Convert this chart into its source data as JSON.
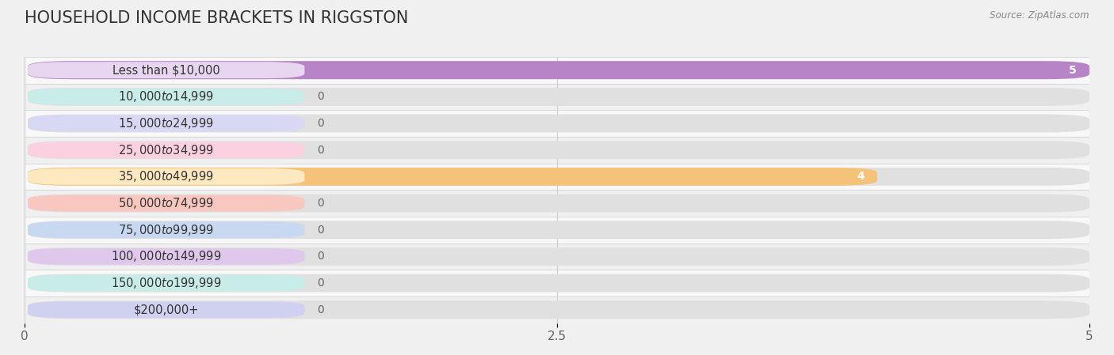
{
  "title": "HOUSEHOLD INCOME BRACKETS IN RIGGSTON",
  "source": "Source: ZipAtlas.com",
  "categories": [
    "Less than $10,000",
    "$10,000 to $14,999",
    "$15,000 to $24,999",
    "$25,000 to $34,999",
    "$35,000 to $49,999",
    "$50,000 to $74,999",
    "$75,000 to $99,999",
    "$100,000 to $149,999",
    "$150,000 to $199,999",
    "$200,000+"
  ],
  "values": [
    5,
    0,
    0,
    0,
    4,
    0,
    0,
    0,
    0,
    0
  ],
  "bar_colors": [
    "#b784c8",
    "#6ecbc4",
    "#a9a9e0",
    "#f4a7c0",
    "#f5c27a",
    "#f0a090",
    "#a0bce0",
    "#c8a0d0",
    "#6ecbc4",
    "#b0b0e8"
  ],
  "label_bg_colors": [
    "#e8d5f0",
    "#c8ece8",
    "#d8d8f5",
    "#fbd0e0",
    "#fde8c0",
    "#f8c8c0",
    "#c8d8f0",
    "#e0c8ec",
    "#c8ece8",
    "#d0d0f0"
  ],
  "xlim": [
    0,
    5
  ],
  "xticks": [
    0,
    2.5,
    5
  ],
  "background_color": "#f0f0f0",
  "row_bg_even": "#f5f5f5",
  "row_bg_odd": "#ebebeb",
  "bar_bg_color": "#e0e0e0",
  "title_fontsize": 15,
  "label_fontsize": 10.5,
  "value_fontsize": 10
}
